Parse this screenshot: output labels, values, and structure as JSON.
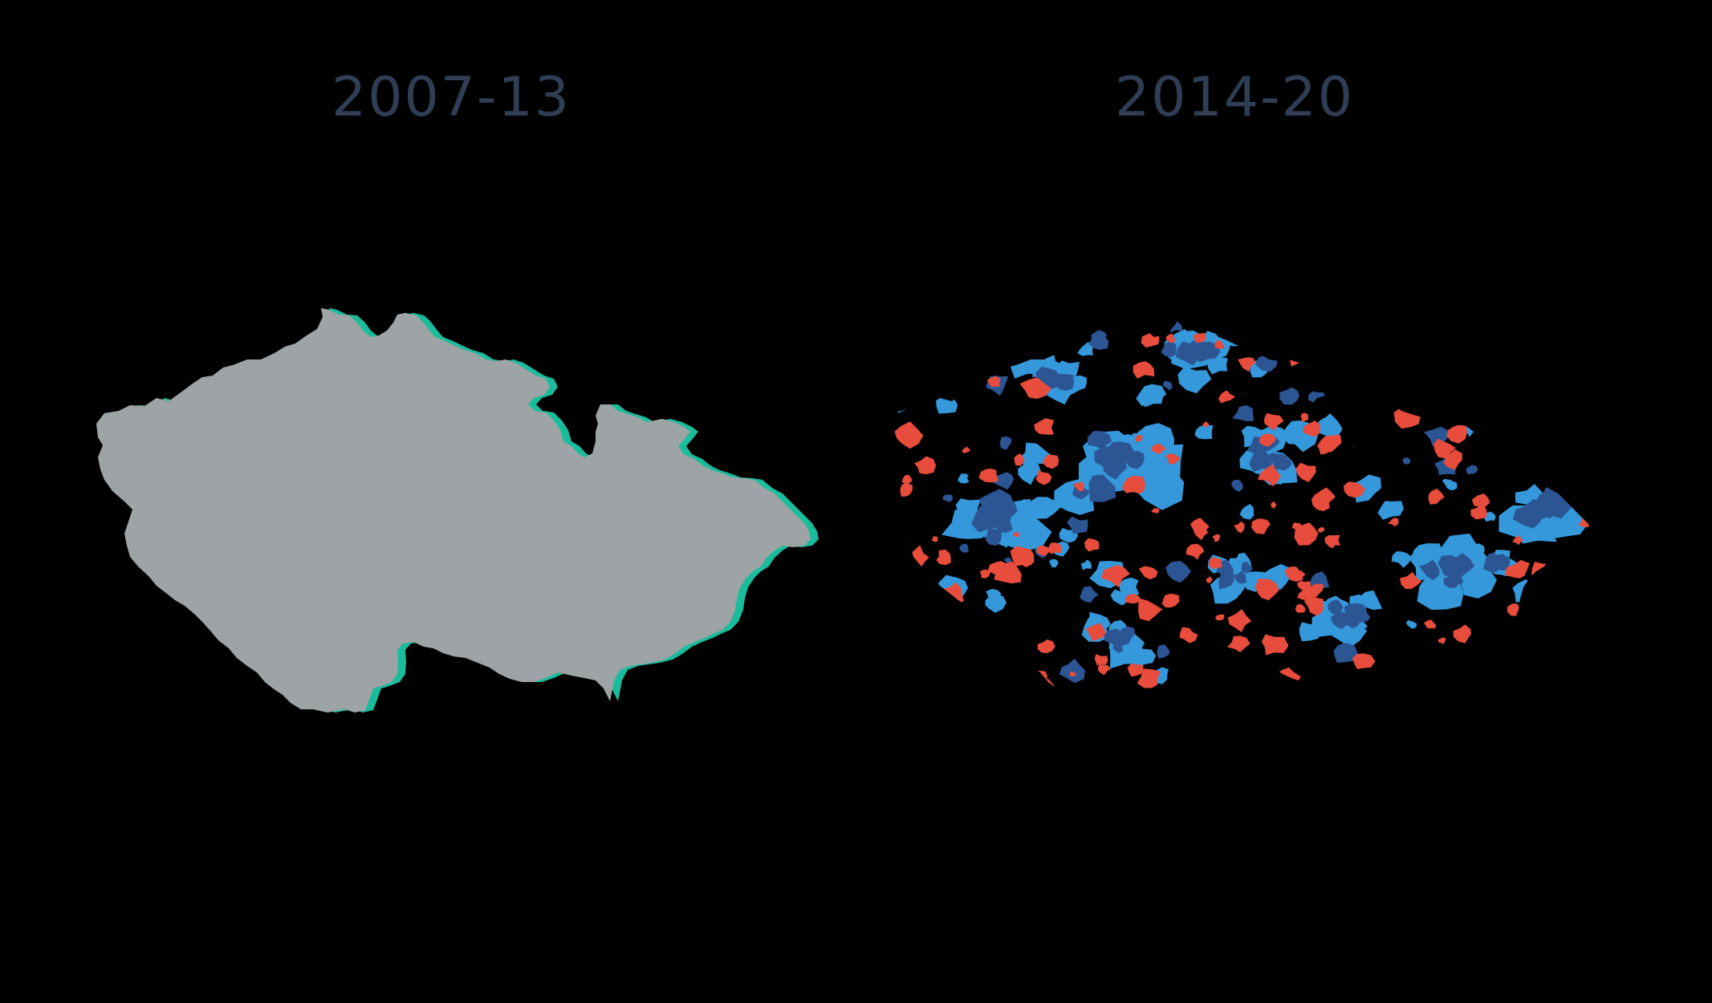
{
  "panels": [
    {
      "title": "2007-13",
      "fill": "#1abc9c"
    },
    {
      "title": "2014-20",
      "base_fill": "#9ea3a6",
      "category_colors": {
        "red": "#e74c3c",
        "light_blue": "#3498db",
        "dark_blue": "#2c5594"
      }
    }
  ],
  "title_color": "#2f3e55"
}
